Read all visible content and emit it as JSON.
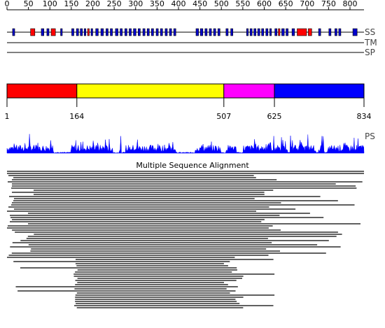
{
  "ruler": {
    "ticks": [
      0,
      50,
      100,
      150,
      200,
      250,
      300,
      350,
      400,
      450,
      500,
      550,
      600,
      650,
      700,
      750,
      800
    ]
  },
  "tracks": {
    "ss_label": "SS",
    "tm_label": "TM",
    "sp_label": "SP",
    "ss_segments": [
      {
        "start": 14,
        "end": 19,
        "type": "strand"
      },
      {
        "start": 56,
        "end": 66,
        "type": "helix"
      },
      {
        "start": 81,
        "end": 87,
        "type": "strand"
      },
      {
        "start": 94,
        "end": 99,
        "type": "strand"
      },
      {
        "start": 104,
        "end": 114,
        "type": "helix"
      },
      {
        "start": 126,
        "end": 130,
        "type": "strand"
      },
      {
        "start": 152,
        "end": 157,
        "type": "strand"
      },
      {
        "start": 163,
        "end": 168,
        "type": "strand"
      },
      {
        "start": 172,
        "end": 177,
        "type": "strand"
      },
      {
        "start": 181,
        "end": 185,
        "type": "strand"
      },
      {
        "start": 189,
        "end": 193,
        "type": "helix"
      },
      {
        "start": 197,
        "end": 201,
        "type": "strand"
      },
      {
        "start": 208,
        "end": 214,
        "type": "strand"
      },
      {
        "start": 220,
        "end": 226,
        "type": "strand"
      },
      {
        "start": 232,
        "end": 237,
        "type": "strand"
      },
      {
        "start": 242,
        "end": 247,
        "type": "strand"
      },
      {
        "start": 254,
        "end": 260,
        "type": "strand"
      },
      {
        "start": 265,
        "end": 270,
        "type": "strand"
      },
      {
        "start": 276,
        "end": 281,
        "type": "strand"
      },
      {
        "start": 286,
        "end": 291,
        "type": "strand"
      },
      {
        "start": 296,
        "end": 302,
        "type": "strand"
      },
      {
        "start": 307,
        "end": 312,
        "type": "strand"
      },
      {
        "start": 318,
        "end": 323,
        "type": "strand"
      },
      {
        "start": 328,
        "end": 333,
        "type": "strand"
      },
      {
        "start": 338,
        "end": 343,
        "type": "strand"
      },
      {
        "start": 349,
        "end": 354,
        "type": "strand"
      },
      {
        "start": 359,
        "end": 364,
        "type": "strand"
      },
      {
        "start": 370,
        "end": 375,
        "type": "strand"
      },
      {
        "start": 380,
        "end": 385,
        "type": "strand"
      },
      {
        "start": 390,
        "end": 395,
        "type": "strand"
      },
      {
        "start": 442,
        "end": 448,
        "type": "strand"
      },
      {
        "start": 452,
        "end": 458,
        "type": "strand"
      },
      {
        "start": 463,
        "end": 468,
        "type": "strand"
      },
      {
        "start": 473,
        "end": 478,
        "type": "strand"
      },
      {
        "start": 483,
        "end": 488,
        "type": "strand"
      },
      {
        "start": 493,
        "end": 498,
        "type": "strand"
      },
      {
        "start": 512,
        "end": 517,
        "type": "strand"
      },
      {
        "start": 523,
        "end": 528,
        "type": "strand"
      },
      {
        "start": 560,
        "end": 564,
        "type": "strand"
      },
      {
        "start": 568,
        "end": 573,
        "type": "strand"
      },
      {
        "start": 577,
        "end": 582,
        "type": "strand"
      },
      {
        "start": 586,
        "end": 591,
        "type": "strand"
      },
      {
        "start": 595,
        "end": 600,
        "type": "strand"
      },
      {
        "start": 605,
        "end": 610,
        "type": "strand"
      },
      {
        "start": 614,
        "end": 618,
        "type": "strand"
      },
      {
        "start": 626,
        "end": 631,
        "type": "strand"
      },
      {
        "start": 634,
        "end": 638,
        "type": "helix"
      },
      {
        "start": 642,
        "end": 648,
        "type": "strand"
      },
      {
        "start": 652,
        "end": 657,
        "type": "strand"
      },
      {
        "start": 666,
        "end": 672,
        "type": "strand"
      },
      {
        "start": 678,
        "end": 700,
        "type": "helix"
      },
      {
        "start": 704,
        "end": 712,
        "type": "helix"
      },
      {
        "start": 728,
        "end": 733,
        "type": "strand"
      },
      {
        "start": 752,
        "end": 757,
        "type": "strand"
      },
      {
        "start": 766,
        "end": 771,
        "type": "strand"
      },
      {
        "start": 775,
        "end": 780,
        "type": "strand"
      },
      {
        "start": 808,
        "end": 818,
        "type": "strand"
      }
    ]
  },
  "domains": {
    "segments": [
      {
        "start": 1,
        "end": 164,
        "color": "#ff0000"
      },
      {
        "start": 164,
        "end": 507,
        "color": "#ffff00"
      },
      {
        "start": 507,
        "end": 625,
        "color": "#ff00ff"
      },
      {
        "start": 625,
        "end": 834,
        "color": "#0000ff"
      }
    ],
    "boundaries": [
      "1",
      "164",
      "507",
      "625",
      "834"
    ]
  },
  "ps": {
    "label": "PS"
  },
  "msa": {
    "title": "Multiple Sequence Alignment"
  },
  "colors": {
    "strand": "#0000cc",
    "helix": "#ff0000",
    "ps_fill": "#0000ff",
    "line": "#000000"
  }
}
